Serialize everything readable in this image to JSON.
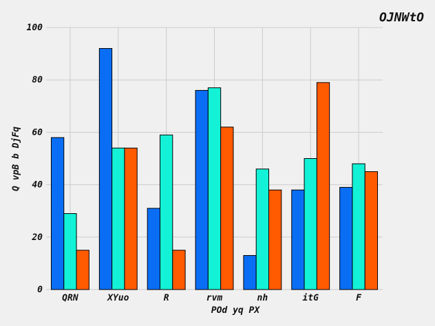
{
  "chart_data": {
    "type": "bar",
    "title": "OJNWtO",
    "xlabel": "POd yq PX",
    "ylabel": "Q vpB b DjFq",
    "categories": [
      "QRN",
      "XYuo",
      "R",
      "rvm",
      "nh",
      "itG",
      "F"
    ],
    "series": [
      {
        "values": [
          58,
          92,
          31,
          76,
          13,
          38,
          39
        ],
        "color": "#0a6ef5"
      },
      {
        "values": [
          29,
          54,
          59,
          77,
          46,
          50,
          48
        ],
        "color": "#13f2d6"
      },
      {
        "values": [
          15,
          54,
          15,
          62,
          38,
          79,
          45
        ],
        "color": "#ff5a00"
      }
    ],
    "ylim": [
      0,
      100
    ],
    "yticks": [
      0,
      20,
      40,
      60,
      80,
      100
    ],
    "grid": true,
    "legend": "none"
  }
}
